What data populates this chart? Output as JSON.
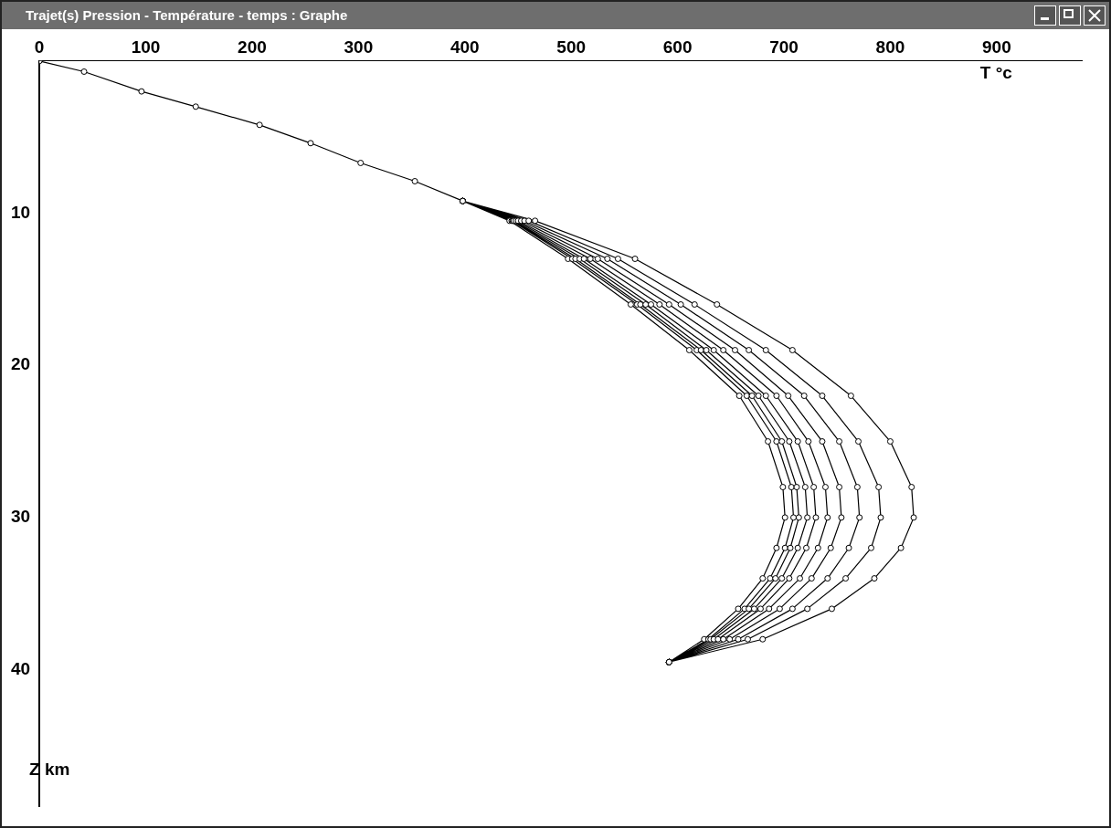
{
  "chart_data": {
    "type": "line",
    "title": "Trajet(s) Pression - Température - temps : Graphe",
    "xlabel": "T °c",
    "ylabel": "Z km",
    "xlim": [
      0,
      980
    ],
    "xticks": [
      0,
      100,
      200,
      300,
      400,
      500,
      600,
      700,
      800,
      900
    ],
    "ylim": [
      49,
      0
    ],
    "yticks": [
      10,
      20,
      30,
      40
    ],
    "grid": false,
    "legend": false,
    "marker": "circle",
    "line_style": "solid",
    "series": [
      {
        "color": "#000000",
        "x": [
          0,
          42,
          96,
          147,
          207,
          255,
          302,
          353,
          398,
          442,
          497,
          556,
          611,
          658,
          685,
          699,
          701,
          693,
          680,
          657,
          625,
          592,
          null,
          398,
          444,
          501,
          562,
          618,
          665,
          693,
          707,
          709,
          701,
          687,
          663,
          629,
          592,
          null,
          398,
          445,
          504,
          565,
          622,
          670,
          698,
          712,
          714,
          706,
          692,
          667,
          631,
          592,
          null,
          398,
          446,
          508,
          570,
          627,
          676,
          705,
          720,
          722,
          713,
          698,
          672,
          634,
          592,
          null,
          398,
          448,
          512,
          575,
          634,
          683,
          713,
          728,
          730,
          721,
          705,
          678,
          638,
          592,
          null,
          398,
          450,
          518,
          583,
          643,
          693,
          723,
          739,
          741,
          732,
          715,
          686,
          643,
          592,
          null,
          398,
          453,
          525,
          592,
          654,
          704,
          736,
          752,
          754,
          744,
          726,
          696,
          649,
          592,
          null,
          398,
          456,
          534,
          603,
          667,
          719,
          752,
          769,
          771,
          761,
          741,
          708,
          657,
          592,
          null,
          398,
          460,
          544,
          616,
          683,
          736,
          770,
          789,
          791,
          782,
          758,
          722,
          666,
          592,
          null,
          398,
          466,
          560,
          637,
          708,
          763,
          800,
          820,
          822,
          810,
          785,
          745,
          680,
          592
        ],
        "values": [
          0,
          0.7,
          2,
          3,
          4.2,
          5.4,
          6.7,
          7.9,
          9.2,
          10.5,
          13,
          16,
          19,
          22,
          25,
          28,
          30,
          32,
          34,
          36,
          38,
          39.5,
          null,
          9.2,
          10.5,
          13,
          16,
          19,
          22,
          25,
          28,
          30,
          32,
          34,
          36,
          38,
          39.5,
          null,
          9.2,
          10.5,
          13,
          16,
          19,
          22,
          25,
          28,
          30,
          32,
          34,
          36,
          38,
          39.5,
          null,
          9.2,
          10.5,
          13,
          16,
          19,
          22,
          25,
          28,
          30,
          32,
          34,
          36,
          38,
          39.5,
          null,
          9.2,
          10.5,
          13,
          16,
          19,
          22,
          25,
          28,
          30,
          32,
          34,
          36,
          38,
          39.5,
          null,
          9.2,
          10.5,
          13,
          16,
          19,
          22,
          25,
          28,
          30,
          32,
          34,
          36,
          38,
          39.5,
          null,
          9.2,
          10.5,
          13,
          16,
          19,
          22,
          25,
          28,
          30,
          32,
          34,
          36,
          38,
          39.5,
          null,
          9.2,
          10.5,
          13,
          16,
          19,
          22,
          25,
          28,
          30,
          32,
          34,
          36,
          38,
          39.5,
          null,
          9.2,
          10.5,
          13,
          16,
          19,
          22,
          25,
          28,
          30,
          32,
          34,
          36,
          38,
          39.5,
          null,
          9.2,
          10.5,
          13,
          16,
          19,
          22,
          25,
          28,
          30,
          32,
          34,
          36,
          38,
          39.5
        ]
      }
    ]
  }
}
